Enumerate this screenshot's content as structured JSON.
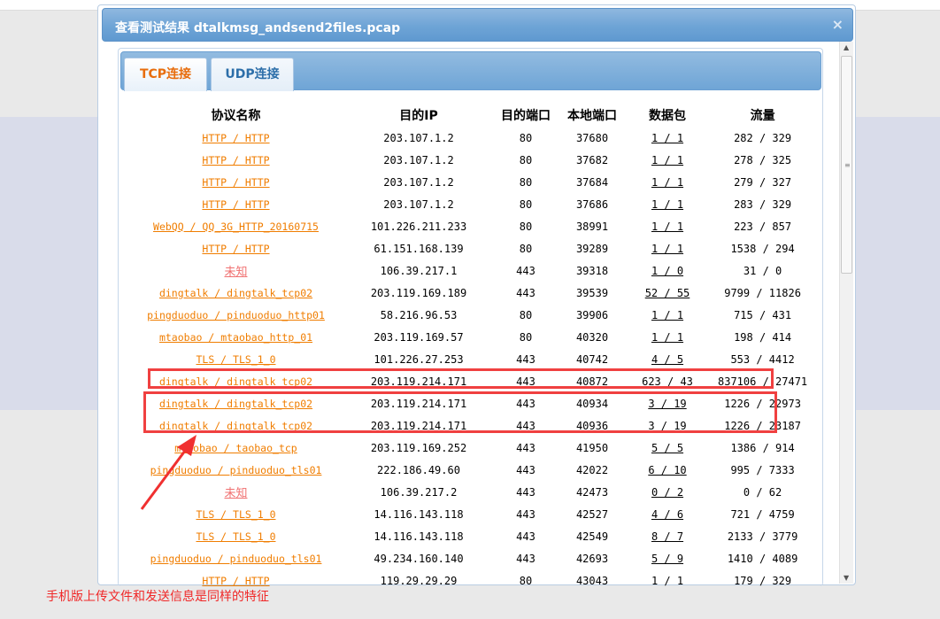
{
  "dialog": {
    "title": "查看测试结果  dtalkmsg_andsend2files.pcap",
    "close_icon": "close-icon"
  },
  "tabs": [
    {
      "label": "TCP连接",
      "active": true
    },
    {
      "label": "UDP连接",
      "active": false
    }
  ],
  "table": {
    "headers": [
      "协议名称",
      "目的IP",
      "目的端口",
      "本地端口",
      "数据包",
      "流量"
    ],
    "rows": [
      [
        "HTTP / HTTP",
        "203.107.1.2",
        "80",
        "37680",
        "1 / 1",
        "282 / 329"
      ],
      [
        "HTTP / HTTP",
        "203.107.1.2",
        "80",
        "37682",
        "1 / 1",
        "278 / 325"
      ],
      [
        "HTTP / HTTP",
        "203.107.1.2",
        "80",
        "37684",
        "1 / 1",
        "279 / 327"
      ],
      [
        "HTTP / HTTP",
        "203.107.1.2",
        "80",
        "37686",
        "1 / 1",
        "283 / 329"
      ],
      [
        "WebQQ / QQ_3G_HTTP_20160715",
        "101.226.211.233",
        "80",
        "38991",
        "1 / 1",
        "223 / 857"
      ],
      [
        "HTTP / HTTP",
        "61.151.168.139",
        "80",
        "39289",
        "1 / 1",
        "1538 / 294"
      ],
      [
        "未知",
        "106.39.217.1",
        "443",
        "39318",
        "1 / 0",
        "31 / 0"
      ],
      [
        "dingtalk / dingtalk_tcp02",
        "203.119.169.189",
        "443",
        "39539",
        "52 / 55",
        "9799 / 11826"
      ],
      [
        "pingduoduo / pinduoduo_http01",
        "58.216.96.53",
        "80",
        "39906",
        "1 / 1",
        "715 / 431"
      ],
      [
        "mtaobao / mtaobao_http_01",
        "203.119.169.57",
        "80",
        "40320",
        "1 / 1",
        "198 / 414"
      ],
      [
        "TLS / TLS_1_0",
        "101.226.27.253",
        "443",
        "40742",
        "4 / 5",
        "553 / 4412"
      ],
      [
        "dingtalk / dingtalk_tcp02",
        "203.119.214.171",
        "443",
        "40872",
        "623 / 43",
        "837106 / 27471"
      ],
      [
        "dingtalk / dingtalk_tcp02",
        "203.119.214.171",
        "443",
        "40934",
        "3 / 19",
        "1226 / 22973"
      ],
      [
        "dingtalk / dingtalk_tcp02",
        "203.119.214.171",
        "443",
        "40936",
        "3 / 19",
        "1226 / 23187"
      ],
      [
        "mtaobao / taobao_tcp",
        "203.119.169.252",
        "443",
        "41950",
        "5 / 5",
        "1386 / 914"
      ],
      [
        "pingduoduo / pinduoduo_tls01",
        "222.186.49.60",
        "443",
        "42022",
        "6 / 10",
        "995 / 7333"
      ],
      [
        "未知",
        "106.39.217.2",
        "443",
        "42473",
        "0 / 2",
        "0 / 62"
      ],
      [
        "TLS / TLS_1_0",
        "14.116.143.118",
        "443",
        "42527",
        "4 / 6",
        "721 / 4759"
      ],
      [
        "TLS / TLS_1_0",
        "14.116.143.118",
        "443",
        "42549",
        "8 / 7",
        "2133 / 3779"
      ],
      [
        "pingduoduo / pinduoduo_tls01",
        "49.234.160.140",
        "443",
        "42693",
        "5 / 9",
        "1410 / 4089"
      ],
      [
        "HTTP / HTTP",
        "119.29.29.29",
        "80",
        "43043",
        "1 / 1",
        "179 / 329"
      ]
    ]
  },
  "annotation": {
    "caption": "手机版上传文件和发送信息是同样的特征",
    "color": "#f02828"
  },
  "colors": {
    "link": "#f07d00",
    "unknown": "#f07070",
    "header_blue": "#6ea4d6"
  }
}
